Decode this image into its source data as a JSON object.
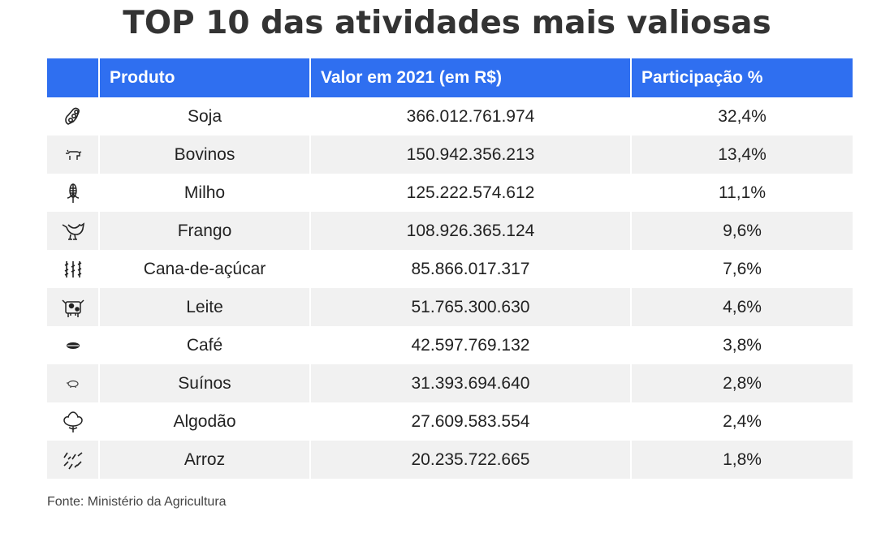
{
  "title": "TOP 10 das atividades mais valiosas",
  "table": {
    "headers": {
      "icon": "",
      "produto": "Produto",
      "valor": "Valor em 2021 (em R$)",
      "participacao": "Participação %"
    },
    "rows": [
      {
        "icon": "soybean-icon",
        "produto": "Soja",
        "valor": "366.012.761.974",
        "participacao": "32,4%"
      },
      {
        "icon": "cattle-icon",
        "produto": "Bovinos",
        "valor": "150.942.356.213",
        "participacao": "13,4%"
      },
      {
        "icon": "corn-icon",
        "produto": "Milho",
        "valor": "125.222.574.612",
        "participacao": "11,1%"
      },
      {
        "icon": "chicken-icon",
        "produto": "Frango",
        "valor": "108.926.365.124",
        "participacao": "9,6%"
      },
      {
        "icon": "sugarcane-icon",
        "produto": "Cana-de-açúcar",
        "valor": "85.866.017.317",
        "participacao": "7,6%"
      },
      {
        "icon": "dairy-cow-icon",
        "produto": "Leite",
        "valor": "51.765.300.630",
        "participacao": "4,6%"
      },
      {
        "icon": "coffee-bean-icon",
        "produto": "Café",
        "valor": "42.597.769.132",
        "participacao": "3,8%"
      },
      {
        "icon": "pig-icon",
        "produto": "Suínos",
        "valor": "31.393.694.640",
        "participacao": "2,8%"
      },
      {
        "icon": "cotton-icon",
        "produto": "Algodão",
        "valor": "27.609.583.554",
        "participacao": "2,4%"
      },
      {
        "icon": "rice-icon",
        "produto": "Arroz",
        "valor": "20.235.722.665",
        "participacao": "1,8%"
      }
    ]
  },
  "source": "Fonte: Ministério da Agricultura",
  "colors": {
    "header_bg": "#2f6ff0",
    "stripe": "#f1f1f1",
    "title": "#333333"
  }
}
